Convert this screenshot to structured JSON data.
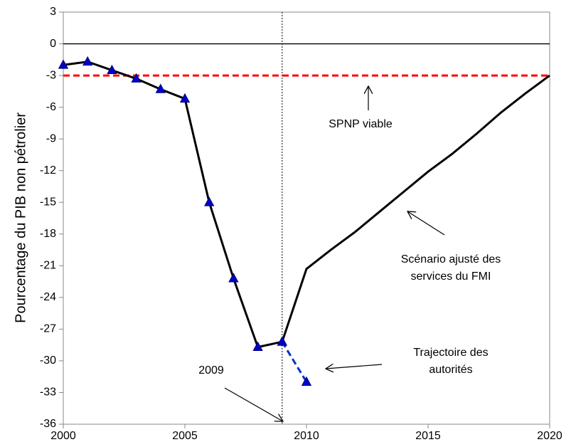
{
  "chart_data": {
    "type": "line",
    "y_label": "Pourcentage du PIB non pétrolier",
    "x": [
      2000,
      2001,
      2002,
      2003,
      2004,
      2005,
      2006,
      2007,
      2008,
      2009,
      2010,
      2011,
      2012,
      2013,
      2014,
      2015,
      2016,
      2017,
      2018,
      2019,
      2020
    ],
    "series": [
      {
        "color": "#000000",
        "dash": "solid",
        "marker": "triangle",
        "marker_color": "#0000cc",
        "values": [
          -2.0,
          -1.7,
          -2.5,
          -3.3,
          -4.3,
          -5.2,
          -15.0,
          -22.2,
          -28.7,
          -28.2,
          null,
          null,
          null,
          null,
          null,
          null,
          null,
          null,
          null,
          null,
          null
        ]
      },
      {
        "color": "#000000",
        "dash": "solid",
        "values": [
          null,
          null,
          null,
          null,
          null,
          null,
          null,
          null,
          null,
          -28.2,
          -21.3,
          -19.5,
          -17.8,
          -15.9,
          -14.0,
          -12.1,
          -10.4,
          -8.5,
          -6.5,
          -4.7,
          -3.0
        ]
      },
      {
        "color": "#0033cc",
        "dash": "dashed",
        "marker": "triangle",
        "marker_color": "#0000cc",
        "values": [
          null,
          null,
          null,
          null,
          null,
          null,
          null,
          null,
          null,
          -28.2,
          -32.0,
          null,
          null,
          null,
          null,
          null,
          null,
          null,
          null,
          null,
          null
        ]
      },
      {
        "color": "#ff0000",
        "dash": "dashed",
        "values": [
          -3,
          -3,
          -3,
          -3,
          -3,
          -3,
          -3,
          -3,
          -3,
          -3,
          -3,
          -3,
          -3,
          -3,
          -3,
          -3,
          -3,
          -3,
          -3,
          -3,
          -3
        ]
      }
    ],
    "vline": 2009,
    "annotations": [
      {
        "text": [
          "SPNP viable"
        ]
      },
      {
        "text": [
          "Scénario ajusté des",
          "services du FMI"
        ]
      },
      {
        "text": [
          "Trajectoire des",
          "autorités"
        ]
      },
      {
        "text": [
          "2009"
        ]
      }
    ],
    "xlim": [
      2000,
      2020
    ],
    "xticks": [
      2000,
      2005,
      2010,
      2015,
      2020
    ],
    "ylim": [
      -36,
      3
    ],
    "yticks": [
      3,
      0,
      -3,
      -6,
      -9,
      -12,
      -15,
      -18,
      -21,
      -24,
      -27,
      -30,
      -33,
      -36
    ],
    "grid": false
  }
}
